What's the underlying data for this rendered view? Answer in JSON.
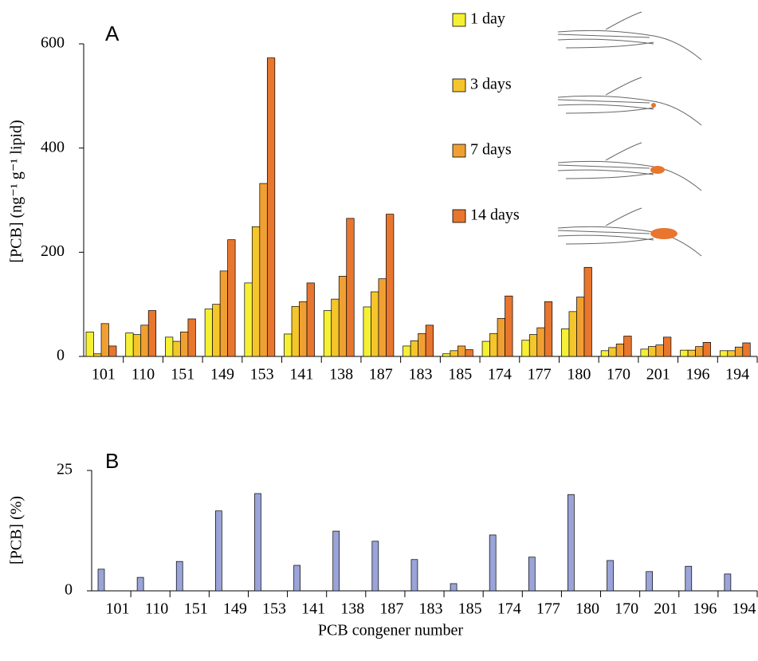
{
  "chart_data": [
    {
      "type": "bar",
      "panel_label": "A",
      "y_label": "[PCB] (ng⁻¹ g⁻¹ lipid)",
      "categories": [
        "101",
        "110",
        "151",
        "149",
        "153",
        "141",
        "138",
        "187",
        "183",
        "185",
        "174",
        "177",
        "180",
        "170",
        "201",
        "196",
        "194"
      ],
      "series": [
        {
          "name": "1 day",
          "color": "#f5f034",
          "values": [
            47,
            45,
            37,
            91,
            141,
            43,
            88,
            95,
            20,
            5,
            29,
            31,
            53,
            11,
            14,
            12,
            11
          ]
        },
        {
          "name": "3 days",
          "color": "#f5c52c",
          "values": [
            5,
            42,
            29,
            100,
            249,
            96,
            110,
            124,
            30,
            11,
            44,
            42,
            86,
            17,
            19,
            12,
            11
          ]
        },
        {
          "name": "7 days",
          "color": "#f0a032",
          "values": [
            63,
            60,
            47,
            164,
            332,
            105,
            154,
            149,
            44,
            20,
            73,
            55,
            114,
            24,
            22,
            19,
            18
          ]
        },
        {
          "name": "14 days",
          "color": "#e8762e",
          "values": [
            20,
            88,
            72,
            224,
            573,
            141,
            265,
            273,
            60,
            13,
            116,
            105,
            171,
            39,
            37,
            27,
            26
          ]
        }
      ],
      "ylim": [
        0,
        600
      ],
      "yticks": [
        0,
        200,
        400,
        600
      ]
    },
    {
      "type": "bar",
      "panel_label": "B",
      "y_label": "[PCB] (%)",
      "x_label": "PCB congener number",
      "categories": [
        "101",
        "110",
        "151",
        "149",
        "153",
        "141",
        "138",
        "187",
        "183",
        "185",
        "174",
        "177",
        "180",
        "170",
        "201",
        "196",
        "194"
      ],
      "series": [
        {
          "color": "#9aa4d8",
          "values": [
            4.5,
            2.8,
            6.1,
            16.6,
            20.2,
            5.3,
            12.4,
            10.3,
            6.5,
            1.5,
            11.6,
            7.0,
            20.0,
            6.3,
            4.0,
            5.1,
            3.5
          ]
        }
      ],
      "ylim": [
        0,
        25
      ],
      "yticks": [
        0,
        25
      ]
    }
  ]
}
